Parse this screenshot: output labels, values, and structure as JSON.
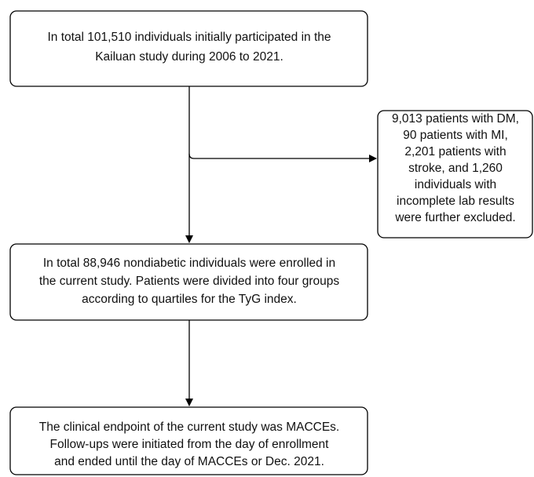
{
  "nodes": [
    {
      "lines": [
        "In total 101,510 individuals initially participated in the",
        "Kailuan study during 2006 to 2021."
      ]
    },
    {
      "lines": [
        "9,013 patients with DM,",
        "90 patients with MI,",
        "2,201 patients with",
        "stroke, and 1,260",
        "individuals with",
        "incomplete lab results",
        "were further excluded."
      ]
    },
    {
      "lines": [
        "In total 88,946 nondiabetic individuals were enrolled in",
        "the current study. Patients were divided into four groups",
        "according to quartiles for the TyG index."
      ]
    },
    {
      "lines": [
        "The clinical endpoint of the current study was MACCEs.",
        "Follow-ups were initiated from the day of enrollment",
        "and ended until the day of MACCEs or Dec. 2021."
      ]
    }
  ]
}
